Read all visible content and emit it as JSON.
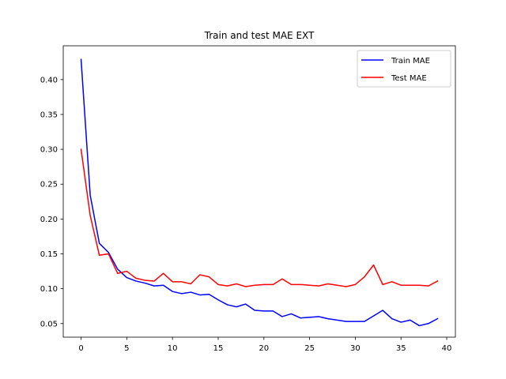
{
  "chart_data": {
    "type": "line",
    "title": "Train and test MAE EXT",
    "xlabel": "",
    "ylabel": "",
    "xlim": [
      -1.95,
      40.95
    ],
    "ylim": [
      0.0305,
      0.4485
    ],
    "xticks": [
      0,
      5,
      10,
      15,
      20,
      25,
      30,
      35,
      40
    ],
    "xtick_labels": [
      "0",
      "5",
      "10",
      "15",
      "20",
      "25",
      "30",
      "35",
      "40"
    ],
    "yticks": [
      0.05,
      0.1,
      0.15,
      0.2,
      0.25,
      0.3,
      0.35,
      0.4
    ],
    "ytick_labels": [
      "0.05",
      "0.10",
      "0.15",
      "0.20",
      "0.25",
      "0.30",
      "0.35",
      "0.40"
    ],
    "grid": false,
    "legend_position": "top-right",
    "x": [
      0,
      1,
      2,
      3,
      4,
      5,
      6,
      7,
      8,
      9,
      10,
      11,
      12,
      13,
      14,
      15,
      16,
      17,
      18,
      19,
      20,
      21,
      22,
      23,
      24,
      25,
      26,
      27,
      28,
      29,
      30,
      31,
      32,
      33,
      34,
      35,
      36,
      37,
      38,
      39
    ],
    "series": [
      {
        "name": "Train MAE",
        "color": "#0000ff",
        "values": [
          0.429,
          0.234,
          0.165,
          0.152,
          0.128,
          0.116,
          0.111,
          0.108,
          0.104,
          0.105,
          0.096,
          0.093,
          0.095,
          0.091,
          0.092,
          0.084,
          0.077,
          0.074,
          0.078,
          0.069,
          0.068,
          0.068,
          0.06,
          0.064,
          0.058,
          0.059,
          0.06,
          0.057,
          0.055,
          0.053,
          0.053,
          0.053,
          0.061,
          0.069,
          0.057,
          0.052,
          0.055,
          0.047,
          0.05,
          0.057
        ]
      },
      {
        "name": "Test MAE",
        "color": "#ff0000",
        "values": [
          0.3,
          0.205,
          0.148,
          0.15,
          0.122,
          0.125,
          0.115,
          0.112,
          0.111,
          0.122,
          0.11,
          0.11,
          0.107,
          0.12,
          0.117,
          0.106,
          0.104,
          0.107,
          0.103,
          0.105,
          0.106,
          0.106,
          0.114,
          0.106,
          0.106,
          0.105,
          0.104,
          0.107,
          0.105,
          0.103,
          0.106,
          0.117,
          0.134,
          0.106,
          0.11,
          0.105,
          0.105,
          0.105,
          0.104,
          0.111
        ]
      }
    ]
  }
}
